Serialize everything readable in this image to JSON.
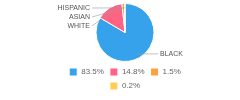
{
  "chart_data": {
    "type": "pie",
    "categories": [
      "BLACK",
      "WHITE",
      "ASIAN",
      "HISPANIC"
    ],
    "values": [
      83.5,
      14.8,
      1.5,
      0.2
    ],
    "value_labels": [
      "83.5%",
      "14.8%",
      "1.5%",
      "0.2%"
    ],
    "legend": "bottom"
  }
}
